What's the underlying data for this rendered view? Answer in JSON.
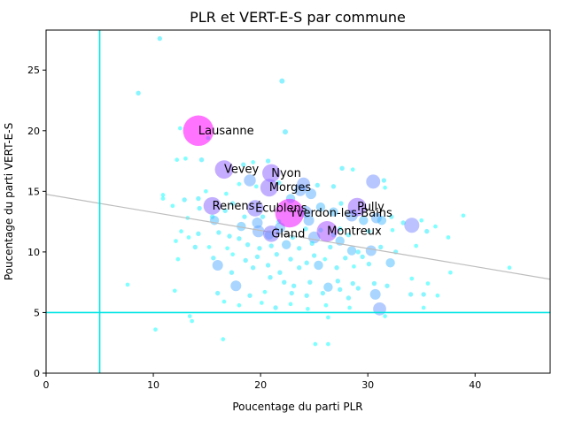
{
  "chart_data": {
    "type": "scatter",
    "title": "PLR et VERT-E-S par commune",
    "xlabel": "Poucentage du parti PLR",
    "ylabel": "Poucentage du parti VERT-E-S",
    "xlim": [
      0,
      47
    ],
    "ylim": [
      0,
      28.3
    ],
    "xticks": [
      0,
      10,
      20,
      30,
      40
    ],
    "yticks": [
      0,
      5,
      10,
      15,
      20,
      25
    ],
    "grid": false,
    "reference_lines": {
      "vertical_x": 5,
      "horizontal_y": 5,
      "color": "#00e5e5"
    },
    "trend_line": {
      "x": [
        0,
        47
      ],
      "y": [
        14.75,
        7.75
      ],
      "color": "#bdbdbd"
    },
    "labeled_communes": [
      {
        "label": "Lausanne",
        "x": 14.2,
        "y": 20.0,
        "size": 330
      },
      {
        "label": "Vevey",
        "x": 16.6,
        "y": 16.8,
        "size": 120
      },
      {
        "label": "Nyon",
        "x": 21.0,
        "y": 16.5,
        "size": 115
      },
      {
        "label": "Morges",
        "x": 20.8,
        "y": 15.3,
        "size": 110
      },
      {
        "label": "Renens",
        "x": 15.5,
        "y": 13.8,
        "size": 110
      },
      {
        "label": "Écublens",
        "x": 19.5,
        "y": 13.6,
        "size": 95
      },
      {
        "label": "Yverdon-les-Bains",
        "x": 22.7,
        "y": 13.2,
        "size": 290
      },
      {
        "label": "Pully",
        "x": 29.0,
        "y": 13.7,
        "size": 120
      },
      {
        "label": "Gland",
        "x": 21.0,
        "y": 11.5,
        "size": 95
      },
      {
        "label": "Montreux",
        "x": 26.2,
        "y": 11.7,
        "size": 150
      }
    ],
    "other_communes": [
      [
        10.6,
        27.6,
        8
      ],
      [
        8.6,
        23.1,
        8
      ],
      [
        22.0,
        24.1,
        10
      ],
      [
        12.5,
        20.2,
        6
      ],
      [
        15.1,
        19.4,
        6
      ],
      [
        22.3,
        19.9,
        10
      ],
      [
        13.0,
        17.7,
        6
      ],
      [
        14.5,
        17.6,
        8
      ],
      [
        20.7,
        17.5,
        8
      ],
      [
        12.2,
        17.6,
        6
      ],
      [
        18.4,
        17.2,
        8
      ],
      [
        19.3,
        17.4,
        6
      ],
      [
        27.6,
        16.9,
        8
      ],
      [
        28.6,
        16.8,
        6
      ],
      [
        30.5,
        15.8,
        70
      ],
      [
        31.5,
        15.9,
        8
      ],
      [
        31.6,
        15.3,
        6
      ],
      [
        26.8,
        15.4,
        8
      ],
      [
        10.9,
        14.7,
        6
      ],
      [
        10.9,
        14.4,
        6
      ],
      [
        12.9,
        14.3,
        8
      ],
      [
        14.2,
        14.4,
        8
      ],
      [
        14.9,
        15.0,
        6
      ],
      [
        16.8,
        14.8,
        6
      ],
      [
        18.0,
        15.6,
        6
      ],
      [
        19.0,
        15.9,
        50
      ],
      [
        19.6,
        15.4,
        6
      ],
      [
        21.7,
        15.7,
        8
      ],
      [
        23.7,
        15.1,
        50
      ],
      [
        24.0,
        15.6,
        60
      ],
      [
        24.7,
        14.8,
        40
      ],
      [
        25.3,
        15.5,
        8
      ],
      [
        22.8,
        14.4,
        30
      ],
      [
        17.4,
        14.0,
        8
      ],
      [
        16.7,
        13.4,
        8
      ],
      [
        15.5,
        12.9,
        8
      ],
      [
        13.2,
        12.8,
        6
      ],
      [
        14.3,
        13.6,
        8
      ],
      [
        11.8,
        13.8,
        6
      ],
      [
        15.7,
        12.6,
        30
      ],
      [
        18.5,
        12.9,
        8
      ],
      [
        18.2,
        12.1,
        30
      ],
      [
        19.7,
        12.4,
        40
      ],
      [
        20.2,
        12.9,
        8
      ],
      [
        21.7,
        12.5,
        8
      ],
      [
        24.2,
        13.3,
        50
      ],
      [
        24.5,
        12.6,
        40
      ],
      [
        25.6,
        13.7,
        30
      ],
      [
        26.8,
        13.3,
        30
      ],
      [
        27.5,
        14.0,
        8
      ],
      [
        28.5,
        13.0,
        50
      ],
      [
        29.6,
        12.6,
        30
      ],
      [
        30.8,
        12.8,
        40
      ],
      [
        31.3,
        12.6,
        30
      ],
      [
        32.2,
        12.9,
        8
      ],
      [
        33.3,
        12.4,
        8
      ],
      [
        34.1,
        12.2,
        80
      ],
      [
        35.0,
        12.6,
        6
      ],
      [
        36.3,
        12.1,
        6
      ],
      [
        38.9,
        13.0,
        6
      ],
      [
        12.6,
        11.7,
        6
      ],
      [
        13.3,
        11.2,
        6
      ],
      [
        14.2,
        11.5,
        8
      ],
      [
        16.1,
        11.6,
        8
      ],
      [
        17.1,
        11.3,
        8
      ],
      [
        18.0,
        11.1,
        8
      ],
      [
        19.8,
        11.7,
        50
      ],
      [
        20.8,
        11.4,
        30
      ],
      [
        21.8,
        12.0,
        40
      ],
      [
        23.0,
        11.2,
        8
      ],
      [
        24.2,
        11.9,
        8
      ],
      [
        25.0,
        11.2,
        50
      ],
      [
        25.6,
        11.8,
        8
      ],
      [
        26.8,
        11.4,
        8
      ],
      [
        27.4,
        11.9,
        8
      ],
      [
        28.2,
        11.4,
        8
      ],
      [
        30.1,
        11.7,
        8
      ],
      [
        32.3,
        11.8,
        6
      ],
      [
        35.5,
        11.7,
        8
      ],
      [
        37.5,
        11.2,
        6
      ],
      [
        12.1,
        10.9,
        6
      ],
      [
        13.9,
        10.4,
        8
      ],
      [
        15.2,
        10.4,
        6
      ],
      [
        16.9,
        10.3,
        6
      ],
      [
        18.8,
        10.6,
        8
      ],
      [
        19.9,
        10.3,
        8
      ],
      [
        21.0,
        10.5,
        8
      ],
      [
        22.4,
        10.6,
        30
      ],
      [
        23.6,
        10.3,
        8
      ],
      [
        24.8,
        10.7,
        8
      ],
      [
        26.5,
        10.4,
        8
      ],
      [
        27.4,
        10.9,
        30
      ],
      [
        28.5,
        10.1,
        30
      ],
      [
        29.1,
        10.0,
        8
      ],
      [
        30.3,
        10.1,
        40
      ],
      [
        31.2,
        10.4,
        8
      ],
      [
        32.6,
        10.0,
        8
      ],
      [
        34.5,
        10.5,
        6
      ],
      [
        15.6,
        9.5,
        8
      ],
      [
        17.4,
        9.8,
        6
      ],
      [
        18.6,
        9.3,
        8
      ],
      [
        19.7,
        9.6,
        8
      ],
      [
        21.5,
        9.8,
        8
      ],
      [
        22.8,
        9.4,
        8
      ],
      [
        24.3,
        9.1,
        8
      ],
      [
        25.0,
        9.7,
        8
      ],
      [
        26.0,
        9.4,
        6
      ],
      [
        27.9,
        9.5,
        8
      ],
      [
        29.5,
        9.6,
        8
      ],
      [
        30.1,
        9.0,
        8
      ],
      [
        32.1,
        9.1,
        30
      ],
      [
        12.3,
        9.4,
        6
      ],
      [
        16.0,
        8.9,
        40
      ],
      [
        17.3,
        8.3,
        8
      ],
      [
        19.3,
        8.7,
        8
      ],
      [
        20.7,
        8.9,
        8
      ],
      [
        21.8,
        8.3,
        8
      ],
      [
        23.6,
        8.7,
        8
      ],
      [
        25.4,
        8.9,
        30
      ],
      [
        27.1,
        8.7,
        8
      ],
      [
        28.7,
        8.8,
        6
      ],
      [
        20.9,
        7.9,
        8
      ],
      [
        22.2,
        7.5,
        8
      ],
      [
        23.1,
        7.2,
        8
      ],
      [
        24.6,
        7.5,
        8
      ],
      [
        26.3,
        7.1,
        30
      ],
      [
        27.2,
        7.6,
        8
      ],
      [
        28.6,
        7.4,
        8
      ],
      [
        29.1,
        7.0,
        8
      ],
      [
        30.6,
        7.4,
        8
      ],
      [
        31.8,
        7.2,
        8
      ],
      [
        34.1,
        7.8,
        6
      ],
      [
        35.6,
        7.4,
        6
      ],
      [
        37.7,
        8.3,
        6
      ],
      [
        43.2,
        8.7,
        6
      ],
      [
        7.6,
        7.3,
        6
      ],
      [
        12.0,
        6.8,
        6
      ],
      [
        16.0,
        6.6,
        8
      ],
      [
        17.7,
        7.2,
        40
      ],
      [
        19.0,
        6.4,
        8
      ],
      [
        20.4,
        6.7,
        6
      ],
      [
        22.9,
        6.6,
        8
      ],
      [
        24.3,
        6.4,
        8
      ],
      [
        25.8,
        6.6,
        8
      ],
      [
        27.4,
        6.9,
        8
      ],
      [
        28.2,
        6.2,
        8
      ],
      [
        30.7,
        6.5,
        40
      ],
      [
        34.0,
        6.5,
        8
      ],
      [
        35.2,
        6.5,
        8
      ],
      [
        36.5,
        6.4,
        6
      ],
      [
        13.4,
        4.7,
        6
      ],
      [
        16.6,
        5.9,
        6
      ],
      [
        18.0,
        5.6,
        6
      ],
      [
        20.1,
        5.8,
        6
      ],
      [
        21.4,
        5.4,
        8
      ],
      [
        22.8,
        5.7,
        6
      ],
      [
        24.4,
        5.3,
        6
      ],
      [
        26.1,
        5.6,
        6
      ],
      [
        28.3,
        5.4,
        6
      ],
      [
        31.1,
        5.3,
        60
      ],
      [
        31.6,
        4.7,
        6
      ],
      [
        35.2,
        5.4,
        6
      ],
      [
        10.2,
        3.6,
        6
      ],
      [
        16.5,
        2.8,
        6
      ],
      [
        25.1,
        2.4,
        6
      ],
      [
        26.3,
        2.4,
        6
      ],
      [
        13.6,
        4.3,
        6
      ],
      [
        26.3,
        4.6,
        6
      ]
    ]
  }
}
